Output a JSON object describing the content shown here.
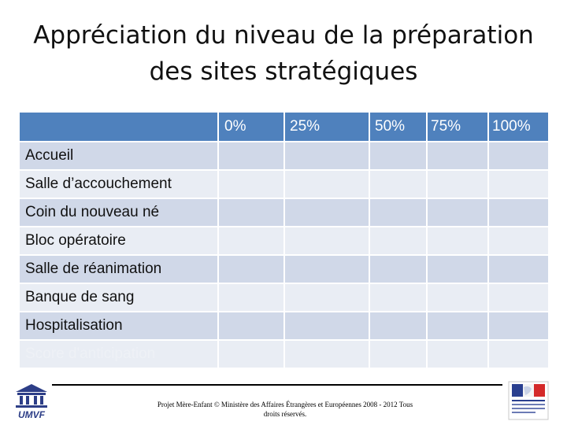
{
  "slide": {
    "title": "Appréciation du niveau de la préparation des sites stratégiques",
    "table": {
      "headers": [
        "",
        "0%",
        "25%",
        "50%",
        "75%",
        "100%"
      ],
      "rows": [
        "Accueil",
        "Salle d’accouchement",
        "Coin du nouveau né",
        "Bloc opératoire",
        "Salle de réanimation",
        "Banque de sang",
        "Hospitalisation",
        "Score d'anticipation"
      ]
    },
    "footer": {
      "copyright": "Projet Mère-Enfant © Ministère des Affaires Étrangères et Européennes 2008 - 2012 Tous droits réservés.",
      "left_logo_text": "UMVF",
      "left_logo_icon": "building-columns-icon",
      "right_logo_icon": "french-republic-flag-icon"
    }
  },
  "colors": {
    "header": "#4f81bd",
    "row_odd": "#d0d8e8",
    "row_even": "#e9edf4",
    "umvf": "#2d3e87"
  }
}
